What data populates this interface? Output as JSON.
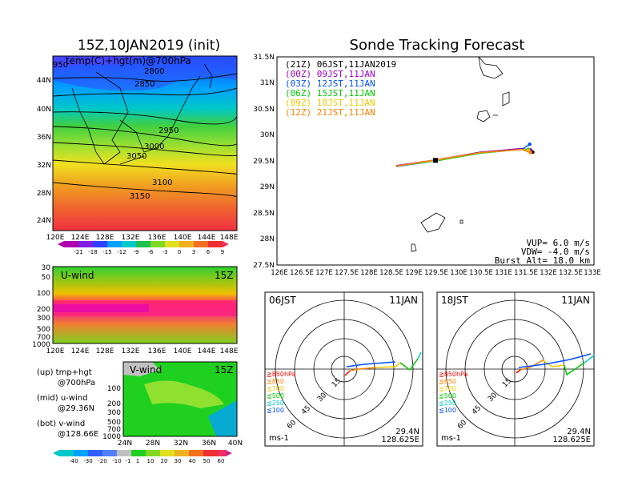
{
  "colors": {
    "purple": "#a000c8",
    "blue": "#0050ff",
    "green": "#00c800",
    "yellow": "#f0c800",
    "orange": "#ff8000",
    "red": "#ff0000",
    "cyan": "#00c8c8",
    "black": "#000000"
  },
  "left_panel": {
    "title": "15Z,10JAN2019 (init)",
    "map": {
      "label": "temp(C)+hgt(m)@700hPa",
      "label_overlap": "950",
      "contours": [
        "2800",
        "2850",
        "2950",
        "3000",
        "3050",
        "3100",
        "3150"
      ],
      "lat_ticks": [
        "44N",
        "40N",
        "36N",
        "32N",
        "28N",
        "24N"
      ],
      "lon_ticks": [
        "120E",
        "124E",
        "128E",
        "132E",
        "136E",
        "140E",
        "144E",
        "148E"
      ],
      "colorbar": [
        "-21",
        "-18",
        "-15",
        "-12",
        "-9",
        "-6",
        "-3",
        "0",
        "3",
        "6",
        "9"
      ]
    },
    "uwind": {
      "label": "U-wind",
      "time": "15Z",
      "p_ticks": [
        "30",
        "50",
        "100",
        "200",
        "300",
        "500",
        "700",
        "1000"
      ],
      "lon_ticks": [
        "120E",
        "124E",
        "128E",
        "132E",
        "136E",
        "140E",
        "144E",
        "148E"
      ]
    },
    "vwind": {
      "label": "V-wind",
      "time": "15Z",
      "p_ticks": [
        "100",
        "200",
        "300",
        "500",
        "700",
        "1000"
      ],
      "lat_ticks": [
        "24N",
        "28N",
        "32N",
        "36N",
        "40N"
      ],
      "colorbar": [
        "-40",
        "-30",
        "-20",
        "-10",
        "-1",
        "1",
        "10",
        "20",
        "30",
        "40",
        "50",
        "60"
      ]
    },
    "notes": [
      "(up) tmp+hgt",
      "@700hPa",
      "(mid) u-wind",
      "@29.36N",
      "(bot) v-wind",
      "@128.66E"
    ]
  },
  "right_panel": {
    "title": "Sonde Tracking Forecast",
    "legend": [
      {
        "text": "(21Z) 06JST,11JAN2019",
        "color": "#000000"
      },
      {
        "text": "(00Z) 09JST,11JAN",
        "color": "#a000c8"
      },
      {
        "text": "(03Z) 12JST,11JAN",
        "color": "#0050ff"
      },
      {
        "text": "(06Z) 15JST,11JAN",
        "color": "#00c800"
      },
      {
        "text": "(09Z) 18JST,11JAN",
        "color": "#f0c800"
      },
      {
        "text": "(12Z) 21JST,11JAN",
        "color": "#ff8000"
      }
    ],
    "params": [
      "VUP= 6.0 m/s",
      "VDW= -4.0 m/s",
      "Burst Alt= 18.0 km"
    ],
    "lat_ticks": [
      "31.5N",
      "31N",
      "30.5N",
      "30N",
      "29.5N",
      "29N",
      "28.5N",
      "28N",
      "27.5N"
    ],
    "lon_ticks": [
      "126E",
      "126.5E",
      "127E",
      "127.5E",
      "128E",
      "128.5E",
      "129E",
      "129.5E",
      "130E",
      "130.5E",
      "131E",
      "131.5E",
      "132E",
      "132.5E",
      "133E"
    ]
  },
  "chart_data": {
    "type": "line",
    "title": "Sonde Tracking Forecast",
    "xlim": [
      126,
      133
    ],
    "ylim": [
      27.5,
      31.5
    ],
    "series": [
      {
        "name": "(21Z) 06JST,11JAN2019",
        "color": "#000000",
        "x": [
          128.63,
          129.5,
          130.5,
          131.4,
          131.65
        ],
        "y": [
          29.4,
          29.51,
          29.67,
          29.73,
          29.67
        ]
      },
      {
        "name": "(00Z) 09JST,11JAN",
        "color": "#a000c8",
        "x": [
          128.63,
          129.5,
          130.5,
          131.4,
          131.6
        ],
        "y": [
          29.41,
          29.52,
          29.67,
          29.74,
          29.71
        ]
      },
      {
        "name": "(03Z) 12JST,11JAN",
        "color": "#0050ff",
        "x": [
          128.63,
          129.5,
          130.5,
          131.4,
          131.58
        ],
        "y": [
          29.39,
          29.5,
          29.66,
          29.72,
          29.82
        ]
      },
      {
        "name": "(06Z) 15JST,11JAN",
        "color": "#00c800",
        "x": [
          128.63,
          129.5,
          130.5,
          131.4,
          131.55
        ],
        "y": [
          29.4,
          29.5,
          29.65,
          29.72,
          29.72
        ]
      },
      {
        "name": "(09Z) 18JST,11JAN",
        "color": "#f0c800",
        "x": [
          128.63,
          129.5,
          130.5,
          131.4,
          131.55
        ],
        "y": [
          29.4,
          29.51,
          29.66,
          29.72,
          29.7
        ]
      },
      {
        "name": "(12Z) 21JST,11JAN",
        "color": "#ff8000",
        "x": [
          128.63,
          129.5,
          130.5,
          131.4,
          131.6
        ],
        "y": [
          29.4,
          29.52,
          29.66,
          29.72,
          29.66
        ]
      }
    ]
  },
  "hodo_06": {
    "time": "06JST",
    "date": "11JAN",
    "rings": [
      "15",
      "30",
      "45",
      "60"
    ],
    "press": [
      {
        "text": "≧850hPa",
        "color": "#ff0000"
      },
      {
        "text": "≦850",
        "color": "#ff8000"
      },
      {
        "text": "≦700",
        "color": "#f0c800"
      },
      {
        "text": "≦500",
        "color": "#00c800"
      },
      {
        "text": "≦250",
        "color": "#00c8c8"
      },
      {
        "text": "≦100",
        "color": "#0050ff"
      }
    ],
    "unit": "ms-1",
    "lat": "29.4N",
    "lon": "128.625E"
  },
  "hodo_18": {
    "time": "18JST",
    "date": "11JAN",
    "rings": [
      "15",
      "30",
      "45",
      "60"
    ],
    "press": [
      {
        "text": "≧850hPa",
        "color": "#ff0000"
      },
      {
        "text": "≦850",
        "color": "#ff8000"
      },
      {
        "text": "≦700",
        "color": "#f0c800"
      },
      {
        "text": "≦500",
        "color": "#00c800"
      },
      {
        "text": "≦250",
        "color": "#00c8c8"
      },
      {
        "text": "≦100",
        "color": "#0050ff"
      }
    ],
    "unit": "ms-1",
    "lat": "29.4N",
    "lon": "128.625E"
  }
}
